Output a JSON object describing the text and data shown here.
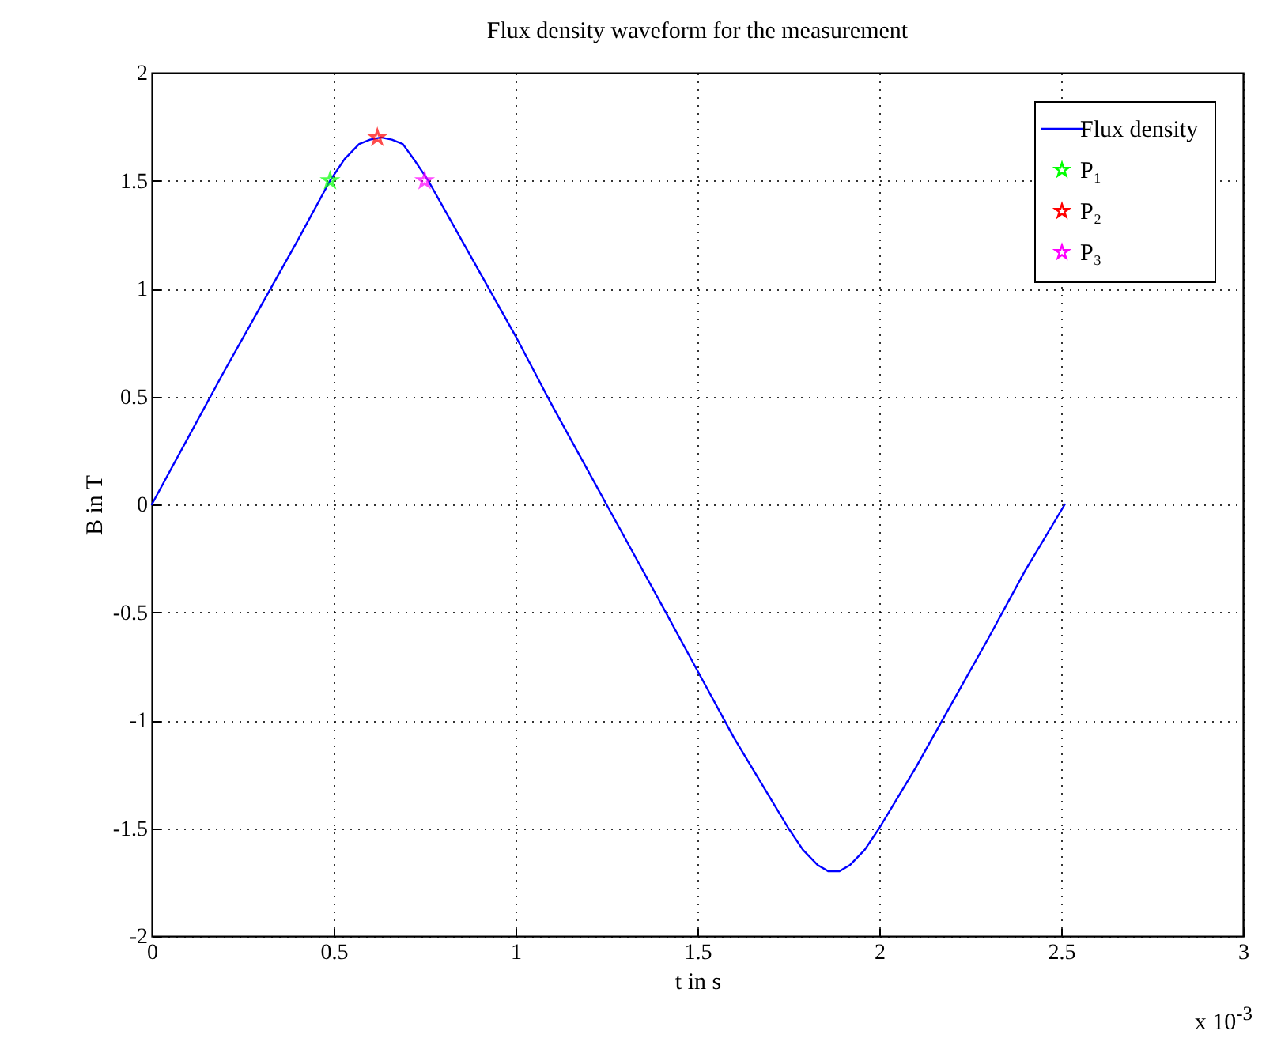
{
  "chart_data": {
    "type": "line",
    "title": "Flux density waveform for the measurement",
    "xlabel": "t in s",
    "ylabel": "B in T",
    "annotations": [
      "x 10$^{-3}$"
    ],
    "xlim": [
      0,
      3
    ],
    "xticks": [
      0,
      0.5,
      1,
      1.5,
      2,
      2.5,
      3
    ],
    "ylim": [
      -2,
      2
    ],
    "yticks": [
      -2,
      -1.5,
      -1,
      -0.5,
      0,
      0.5,
      1,
      1.5,
      2
    ],
    "grid": true,
    "legend": "top right",
    "series": [
      {
        "name": "Flux density",
        "color": "#0000ff",
        "line_style": "solid",
        "x": [
          0,
          0.1,
          0.2,
          0.3,
          0.4,
          0.49,
          0.53,
          0.57,
          0.6,
          0.63,
          0.66,
          0.69,
          0.72,
          0.76,
          0.86,
          1.0,
          1.1,
          1.25,
          1.4,
          1.5,
          1.6,
          1.75,
          1.79,
          1.83,
          1.86,
          1.89,
          1.92,
          1.96,
          2.0,
          2.1,
          2.2,
          2.3,
          2.4,
          2.51
        ],
        "values": [
          0,
          0.31,
          0.62,
          0.92,
          1.22,
          1.5,
          1.6,
          1.67,
          1.69,
          1.7,
          1.69,
          1.67,
          1.6,
          1.5,
          1.2,
          0.78,
          0.46,
          0,
          -0.46,
          -0.77,
          -1.08,
          -1.5,
          -1.6,
          -1.67,
          -1.7,
          -1.7,
          -1.67,
          -1.6,
          -1.5,
          -1.22,
          -0.92,
          -0.62,
          -0.31,
          0
        ]
      },
      {
        "name": "P₁",
        "color": "#00ff00",
        "type": "scatter",
        "marker": "star",
        "x": [
          0.49
        ],
        "values": [
          1.5
        ]
      },
      {
        "name": "P₂",
        "color": "#ff0000",
        "type": "scatter",
        "marker": "star",
        "x": [
          0.62
        ],
        "values": [
          1.7
        ]
      },
      {
        "name": "P₃",
        "color": "#ff00ff",
        "type": "scatter",
        "marker": "star",
        "x": [
          0.75
        ],
        "values": [
          1.5
        ]
      }
    ]
  }
}
